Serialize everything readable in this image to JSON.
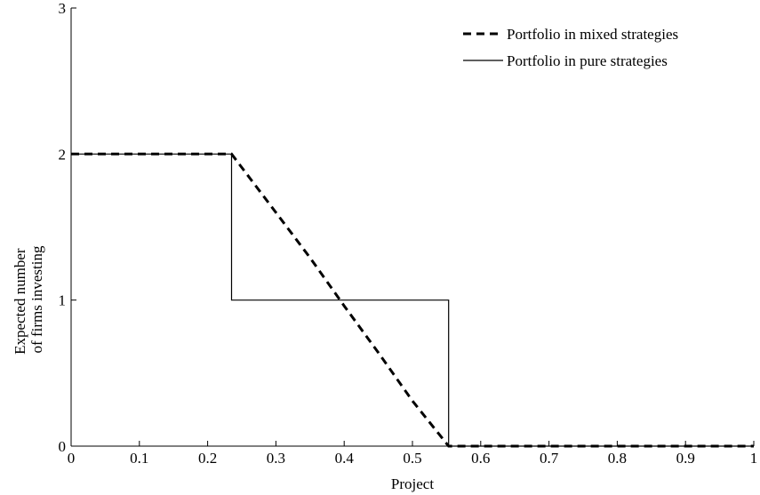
{
  "chart_data": {
    "type": "line",
    "title": "",
    "xlabel": "Project",
    "ylabel_lines": [
      "Expected number",
      "of firms investing"
    ],
    "xlim": [
      0,
      1
    ],
    "ylim": [
      0,
      3
    ],
    "xticks": [
      0,
      0.1,
      0.2,
      0.3,
      0.4,
      0.5,
      0.6,
      0.7,
      0.8,
      0.9,
      1
    ],
    "xtick_labels": [
      "0",
      "0.1",
      "0.2",
      "0.3",
      "0.4",
      "0.5",
      "0.6",
      "0.7",
      "0.8",
      "0.9",
      "1"
    ],
    "yticks": [
      0,
      1,
      2,
      3
    ],
    "ytick_labels": [
      "0",
      "1",
      "2",
      "3"
    ],
    "grid": false,
    "legend_position": "top-right",
    "series": [
      {
        "name": "Portfolio in mixed strategies",
        "style": "dashed",
        "color": "#000000",
        "x": [
          0,
          0.235,
          0.3,
          0.35,
          0.4,
          0.45,
          0.5,
          0.553,
          0.56,
          1
        ],
        "y": [
          2,
          2,
          1.6,
          1.29,
          0.96,
          0.64,
          0.31,
          0,
          0,
          0
        ]
      },
      {
        "name": "Portfolio in pure strategies",
        "style": "solid",
        "color": "#000000",
        "x": [
          0,
          0.235,
          0.235,
          0.553,
          0.553,
          1
        ],
        "y": [
          2,
          2,
          1,
          1,
          0,
          0
        ]
      }
    ]
  }
}
